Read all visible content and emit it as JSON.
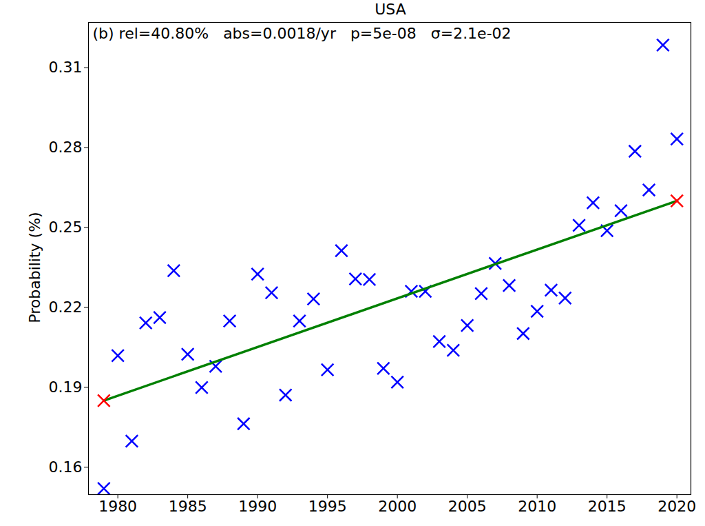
{
  "chart_data": {
    "type": "scatter",
    "title": "USA",
    "annotation": "(b) rel=40.80%   abs=0.0018/yr   p=5e-08   σ=2.1e-02",
    "y_label": "Probability (%)",
    "xlim": [
      1977.9,
      2021.0
    ],
    "ylim": [
      0.1497,
      0.327
    ],
    "xticks": [
      1980,
      1985,
      1990,
      1995,
      2000,
      2005,
      2010,
      2015,
      2020
    ],
    "yticks": [
      0.16,
      0.19,
      0.22,
      0.25,
      0.28,
      0.31
    ],
    "grid": false,
    "series": [
      {
        "type": "scatter",
        "marker": "x",
        "color": "#0000ff",
        "x": [
          1979,
          1980,
          1981,
          1982,
          1983,
          1984,
          1985,
          1986,
          1987,
          1988,
          1989,
          1990,
          1991,
          1992,
          1993,
          1994,
          1995,
          1996,
          1997,
          1998,
          1999,
          2000,
          2001,
          2002,
          2003,
          2004,
          2005,
          2006,
          2007,
          2008,
          2009,
          2010,
          2011,
          2012,
          2013,
          2014,
          2015,
          2016,
          2017,
          2018,
          2019,
          2020
        ],
        "values": [
          0.152,
          0.2019,
          0.1698,
          0.2142,
          0.2162,
          0.2338,
          0.2024,
          0.1899,
          0.1979,
          0.2149,
          0.1763,
          0.2325,
          0.2255,
          0.1871,
          0.2149,
          0.2232,
          0.1966,
          0.2413,
          0.2307,
          0.2305,
          0.1971,
          0.1919,
          0.226,
          0.226,
          0.2072,
          0.2039,
          0.2132,
          0.2252,
          0.2365,
          0.2282,
          0.2102,
          0.2185,
          0.2265,
          0.2235,
          0.2508,
          0.2593,
          0.2488,
          0.2563,
          0.2786,
          0.2641,
          0.3185,
          0.2832
        ]
      },
      {
        "type": "line",
        "line_style": "solid",
        "color": "#008000",
        "x": [
          1979,
          2020
        ],
        "values": [
          0.185,
          0.26
        ]
      },
      {
        "type": "scatter",
        "marker": "x",
        "color": "#ff0000",
        "x": [
          1979,
          2020
        ],
        "values": [
          0.185,
          0.26
        ]
      }
    ]
  }
}
